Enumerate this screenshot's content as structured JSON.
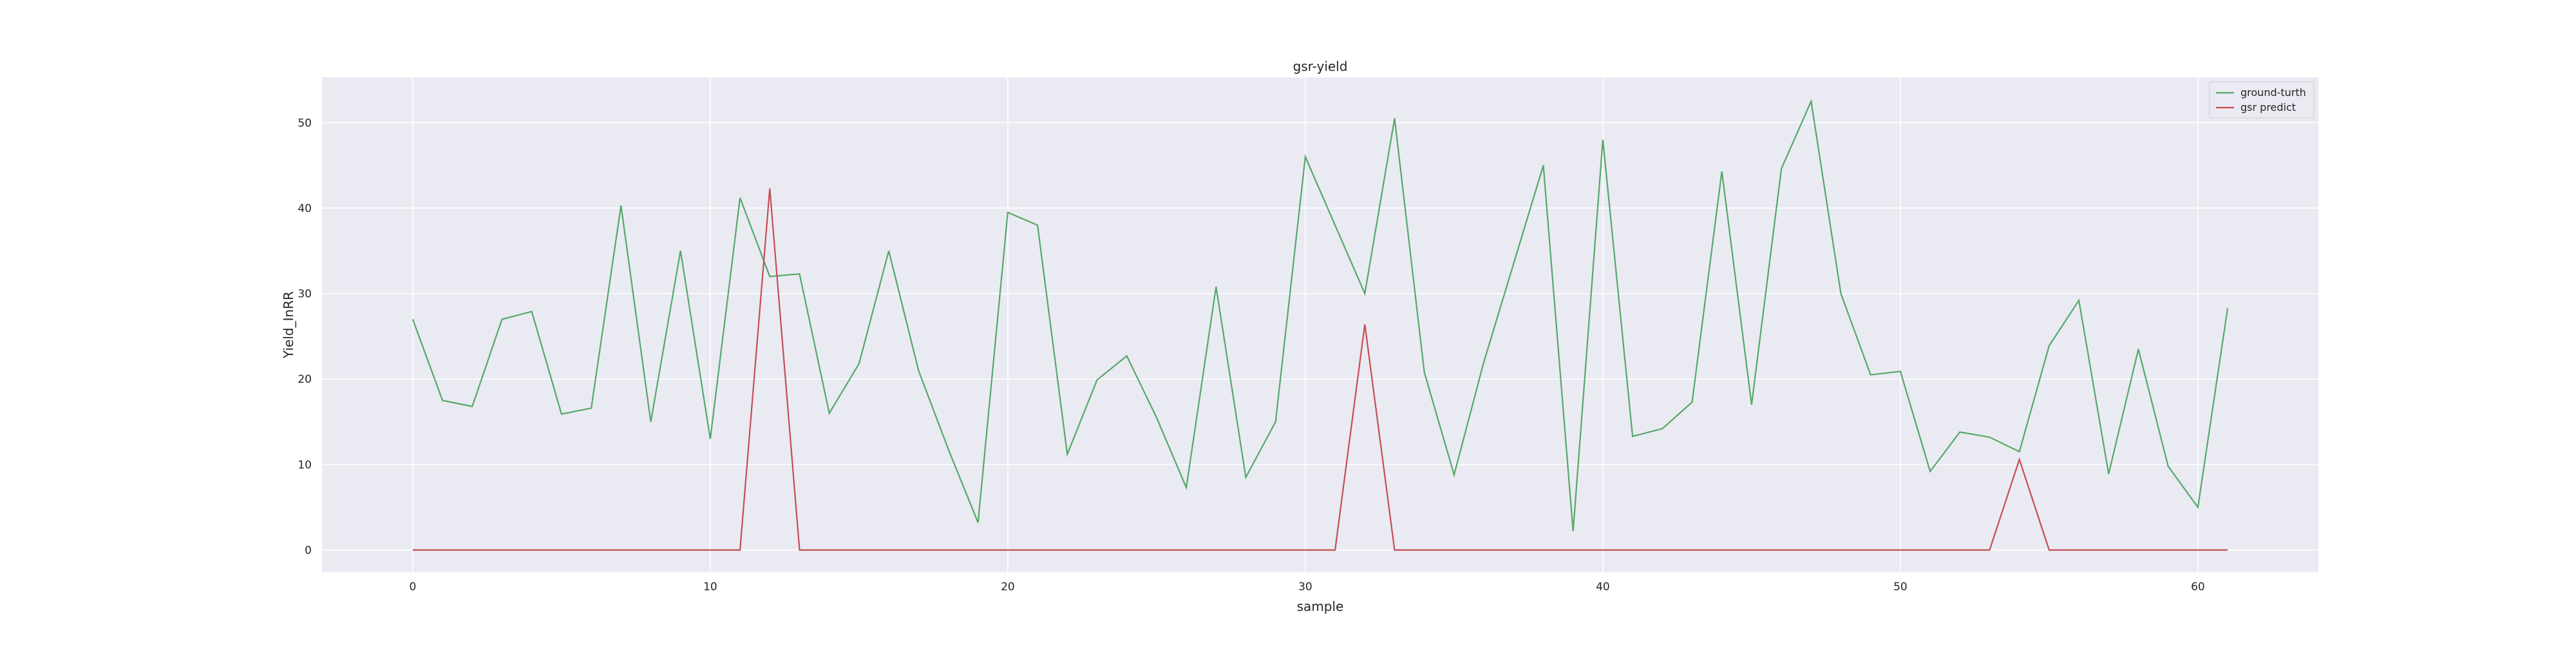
{
  "chart_data": {
    "type": "line",
    "title": "gsr-yield",
    "xlabel": "sample",
    "ylabel": "Yield_InRR",
    "xlim": [
      -3.05,
      64.05
    ],
    "ylim": [
      -2.6,
      55.3
    ],
    "xticks": [
      0,
      10,
      20,
      30,
      40,
      50,
      60
    ],
    "yticks": [
      0,
      10,
      20,
      30,
      40,
      50
    ],
    "grid": true,
    "legend_position": "upper-right",
    "background": "#eaeaf2",
    "x": [
      0,
      1,
      2,
      3,
      4,
      5,
      6,
      7,
      8,
      9,
      10,
      11,
      12,
      13,
      14,
      15,
      16,
      17,
      18,
      19,
      20,
      21,
      22,
      23,
      24,
      25,
      26,
      27,
      28,
      29,
      30,
      31,
      32,
      33,
      34,
      35,
      36,
      37,
      38,
      39,
      40,
      41,
      42,
      43,
      44,
      45,
      46,
      47,
      48,
      49,
      50,
      51,
      52,
      53,
      54,
      55,
      56,
      57,
      58,
      59,
      60,
      61
    ],
    "series": [
      {
        "name": "ground-turth",
        "color": "#55a868",
        "values": [
          27.0,
          17.5,
          16.8,
          27.0,
          27.9,
          15.9,
          16.6,
          40.3,
          15.0,
          35.0,
          13.0,
          41.2,
          32.0,
          32.3,
          16.0,
          21.8,
          35.0,
          21.0,
          11.8,
          3.2,
          39.5,
          38.0,
          11.2,
          19.9,
          22.7,
          15.5,
          7.3,
          30.8,
          8.5,
          15.0,
          46.0,
          38.0,
          30.0,
          50.5,
          20.8,
          8.8,
          22.0,
          33.5,
          45.0,
          2.2,
          48.0,
          13.3,
          14.2,
          17.3,
          44.3,
          17.0,
          44.6,
          52.5,
          30.0,
          20.5,
          20.9,
          9.2,
          13.8,
          13.2,
          11.5,
          23.9,
          29.2,
          8.9,
          23.5,
          9.8,
          5.0,
          28.3
        ]
      },
      {
        "name": "gsr predict",
        "color": "#c44e52",
        "values": [
          0,
          0,
          0,
          0,
          0,
          0,
          0,
          0,
          0,
          0,
          0,
          0,
          42.3,
          0,
          0,
          0,
          0,
          0,
          0,
          0,
          0,
          0,
          0,
          0,
          0,
          0,
          0,
          0,
          0,
          0,
          0,
          0,
          26.4,
          0,
          0,
          0,
          0,
          0,
          0,
          0,
          0,
          0,
          0,
          0,
          0,
          0,
          0,
          0,
          0,
          0,
          0,
          0,
          0,
          0,
          10.6,
          0,
          0,
          0,
          0,
          0,
          0,
          0
        ]
      }
    ]
  }
}
